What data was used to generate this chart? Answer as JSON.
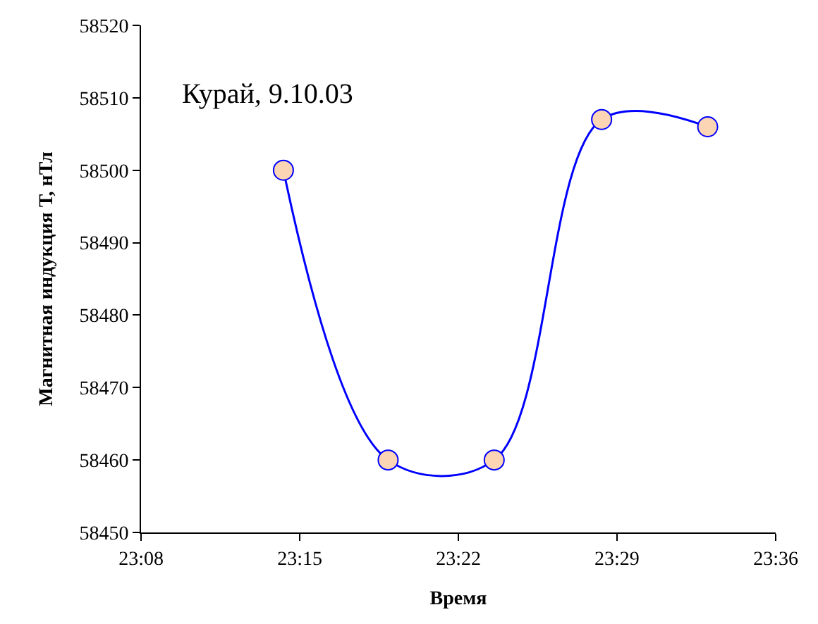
{
  "chart_data": {
    "type": "line",
    "xlabel": "Время",
    "ylabel": "Магнитная индукция Т, нТл",
    "annotations": [
      "Курай, 9.10.03"
    ],
    "x": [
      23.238,
      23.315,
      23.393,
      23.472,
      23.55
    ],
    "series": [
      {
        "color": "#0000ff",
        "values": [
          58500,
          58460,
          58460,
          58507,
          58506
        ]
      }
    ],
    "xlim": [
      23.1333,
      23.6
    ],
    "xticks": [
      {
        "value": 23.1333,
        "label": "23:08"
      },
      {
        "value": 23.25,
        "label": "23:15"
      },
      {
        "value": 23.3667,
        "label": "23:22"
      },
      {
        "value": 23.4833,
        "label": "23:29"
      },
      {
        "value": 23.6,
        "label": "23:36"
      }
    ],
    "ylim": [
      58450,
      58520
    ],
    "yticks": [
      58450,
      58460,
      58470,
      58480,
      58490,
      58500,
      58510,
      58520
    ],
    "legend": false,
    "marker": "circle",
    "line_style": "solid"
  }
}
